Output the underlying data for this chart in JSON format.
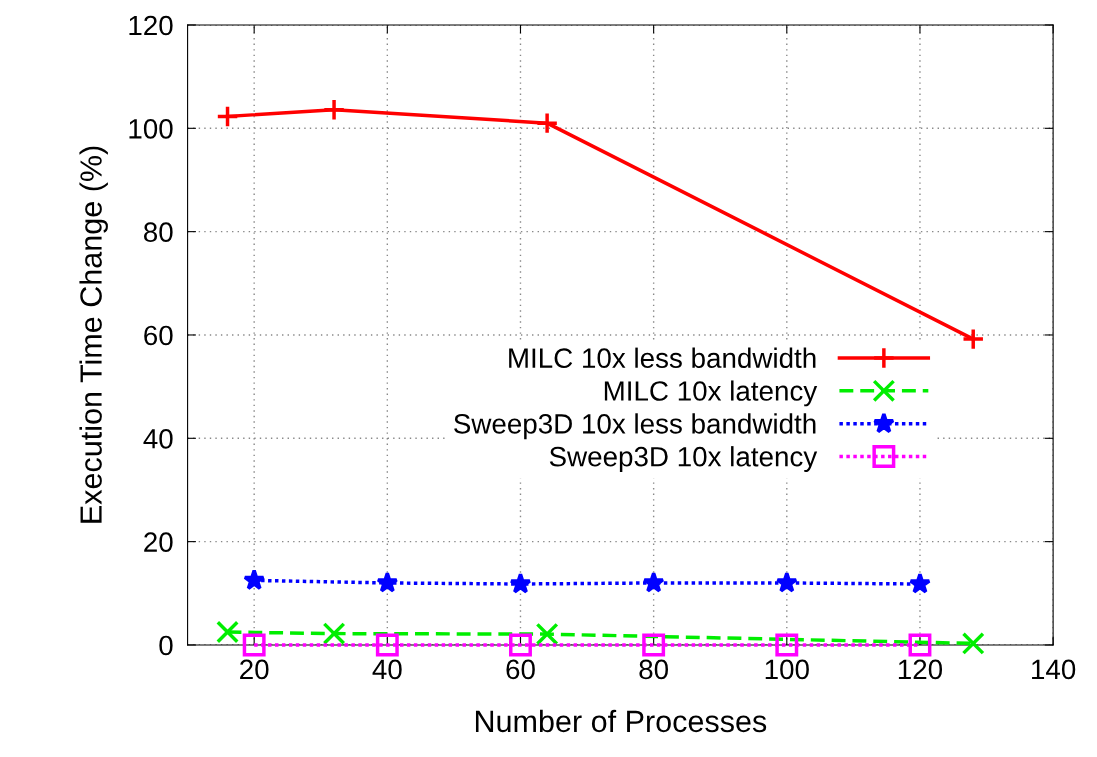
{
  "chart_data": {
    "type": "line",
    "xlabel": "Number of Processes",
    "ylabel": "Execution Time Change (%)",
    "xlim": [
      10,
      140
    ],
    "xticks": [
      20,
      40,
      60,
      80,
      100,
      120,
      140
    ],
    "ylim": [
      0,
      120
    ],
    "yticks": [
      0,
      20,
      40,
      60,
      80,
      100,
      120
    ],
    "grid": true,
    "legend": "right",
    "series": [
      {
        "name": "MILC 10x less bandwidth",
        "color": "#ff0000",
        "x": [
          16,
          32,
          64,
          128
        ],
        "values": [
          102.3,
          103.6,
          101,
          59.2
        ],
        "marker": "plus",
        "line_style": "solid"
      },
      {
        "name": "MILC 10x latency",
        "color": "#00ee00",
        "x": [
          16,
          32,
          64,
          128
        ],
        "values": [
          2.5,
          2.2,
          2.1,
          0.3
        ],
        "marker": "cross",
        "line_style": "dashed"
      },
      {
        "name": "Sweep3D 10x less bandwidth",
        "color": "#0000ff",
        "x": [
          20,
          40,
          60,
          80,
          100,
          120
        ],
        "values": [
          12.5,
          12,
          11.8,
          12,
          12,
          11.8
        ],
        "marker": "star",
        "line_style": "dotted"
      },
      {
        "name": "Sweep3D 10x latency",
        "color": "#ff00ff",
        "x": [
          20,
          40,
          60,
          80,
          100,
          120
        ],
        "values": [
          0,
          0,
          0,
          0,
          0,
          0
        ],
        "marker": "square",
        "line_style": "dotted"
      }
    ]
  }
}
